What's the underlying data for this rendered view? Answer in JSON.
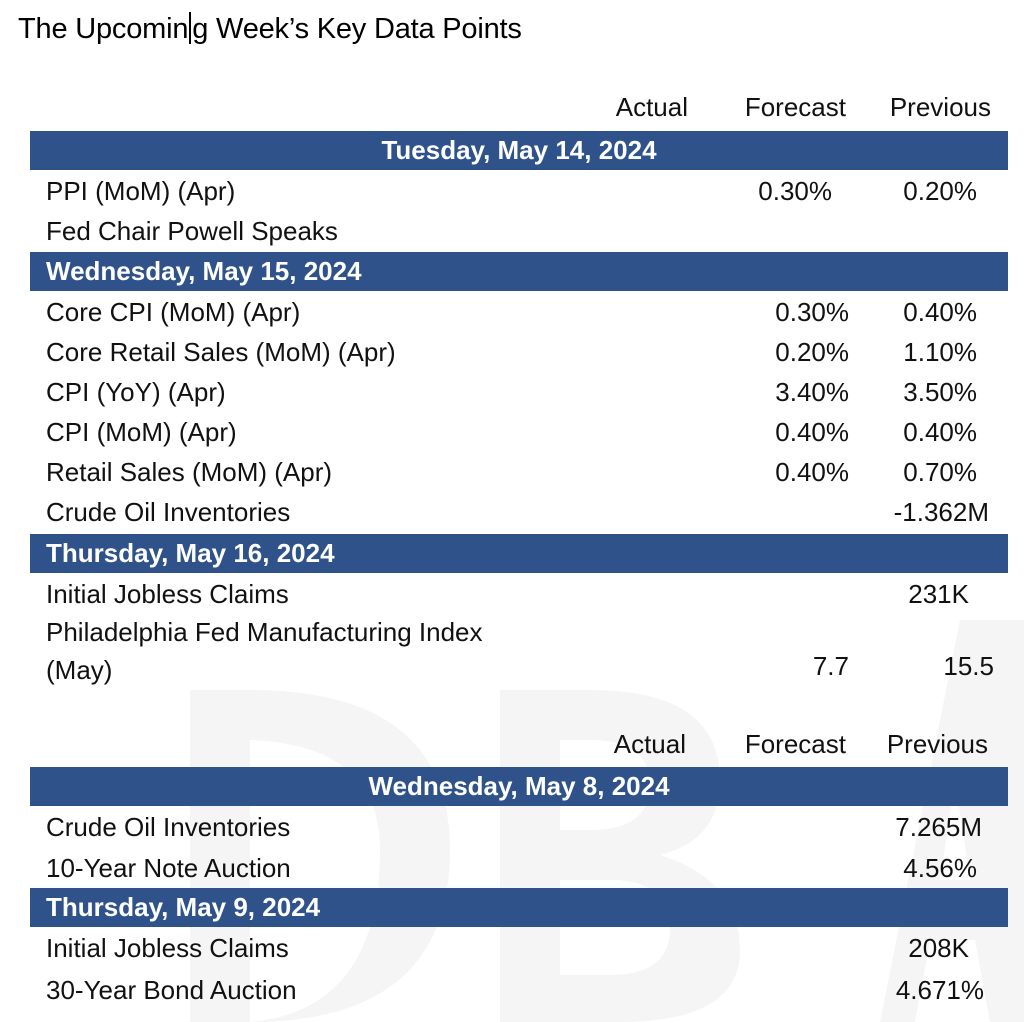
{
  "title": "The Upcoming Week’s Key Data Points",
  "sections": [
    {
      "columns": {
        "actual": "Actual",
        "forecast": "Forecast",
        "previous": "Previous"
      },
      "days": [
        {
          "label": "Tuesday, May 14, 2024",
          "rows": [
            {
              "name": "PPI (MoM) (Apr)",
              "forecast": "0.30%",
              "previous": "0.20%"
            },
            {
              "name": "Fed Chair Powell Speaks",
              "forecast": "",
              "previous": ""
            }
          ]
        },
        {
          "label": "Wednesday, May 15, 2024",
          "rows": [
            {
              "name": "Core CPI (MoM) (Apr)",
              "forecast": "0.30%",
              "previous": "0.40%"
            },
            {
              "name": "Core Retail Sales (MoM) (Apr)",
              "forecast": "0.20%",
              "previous": "1.10%"
            },
            {
              "name": "CPI (YoY) (Apr)",
              "forecast": "3.40%",
              "previous": "3.50%"
            },
            {
              "name": "CPI (MoM) (Apr)",
              "forecast": "0.40%",
              "previous": "0.40%"
            },
            {
              "name": "Retail Sales (MoM) (Apr)",
              "forecast": "0.40%",
              "previous": "0.70%"
            },
            {
              "name": "Crude Oil Inventories",
              "forecast": "",
              "previous": "-1.362M"
            }
          ]
        },
        {
          "label": "Thursday, May 16, 2024",
          "rows": [
            {
              "name": "Initial Jobless Claims",
              "forecast": "",
              "previous": "231K"
            },
            {
              "name": "Philadelphia Fed Manufacturing Index (May)",
              "name_line1": "Philadelphia Fed Manufacturing Index",
              "name_line2": "(May)",
              "forecast": "7.7",
              "previous": "15.5"
            }
          ]
        }
      ]
    },
    {
      "columns": {
        "actual": "Actual",
        "forecast": "Forecast",
        "previous": "Previous"
      },
      "days": [
        {
          "label": "Wednesday, May 8, 2024",
          "rows": [
            {
              "name": "Crude Oil Inventories",
              "forecast": "",
              "previous": "7.265M"
            },
            {
              "name": "10-Year Note Auction",
              "forecast": "",
              "previous": "4.56%"
            }
          ]
        },
        {
          "label": "Thursday, May 9, 2024",
          "rows": [
            {
              "name": "Initial Jobless Claims",
              "forecast": "",
              "previous": "208K"
            },
            {
              "name": "30-Year Bond Auction",
              "forecast": "",
              "previous": "4.671%"
            }
          ]
        }
      ]
    }
  ],
  "colors": {
    "header_bar": "#2e5289",
    "header_text": "#ffffff",
    "watermark": "#f4f4f4"
  }
}
